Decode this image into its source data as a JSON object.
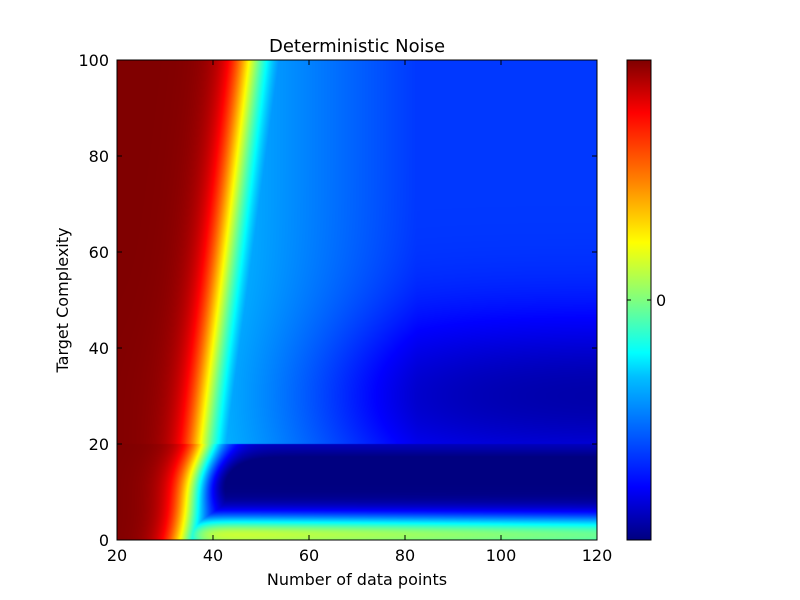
{
  "chart_data": {
    "type": "heatmap",
    "title": "Deterministic Noise",
    "xlabel": "Number of data points",
    "ylabel": "Target Complexity",
    "xlim": [
      20,
      120
    ],
    "ylim": [
      0,
      100
    ],
    "xticks": [
      20,
      40,
      60,
      80,
      100,
      120
    ],
    "yticks": [
      0,
      20,
      40,
      60,
      80,
      100
    ],
    "colormap": "jet",
    "colorbar": {
      "ticks": [
        "0"
      ],
      "tick_position_fraction": 0.5
    },
    "grid": false,
    "description_regions": [
      {
        "region": "x 20–40, all y",
        "level": "high (dark red)"
      },
      {
        "region": "x≈30, y≈12",
        "level": "high (red/orange tip)"
      },
      {
        "region": "x 45–120, y 0–5",
        "level": "moderate (green/yellow)"
      },
      {
        "region": "x 40–120, y 8–16",
        "level": "low (dark blue)"
      },
      {
        "region": "x 80–120, y 20–50",
        "level": "low (dark blue)"
      },
      {
        "region": "x 60–120, y 60–100",
        "level": "medium-low (blue/cyan)"
      }
    ]
  },
  "colors": {
    "jet_stops": [
      "#00007f",
      "#0000ff",
      "#007fff",
      "#00ffff",
      "#7fff7f",
      "#ffff00",
      "#ff7f00",
      "#ff0000",
      "#7f0000"
    ]
  }
}
